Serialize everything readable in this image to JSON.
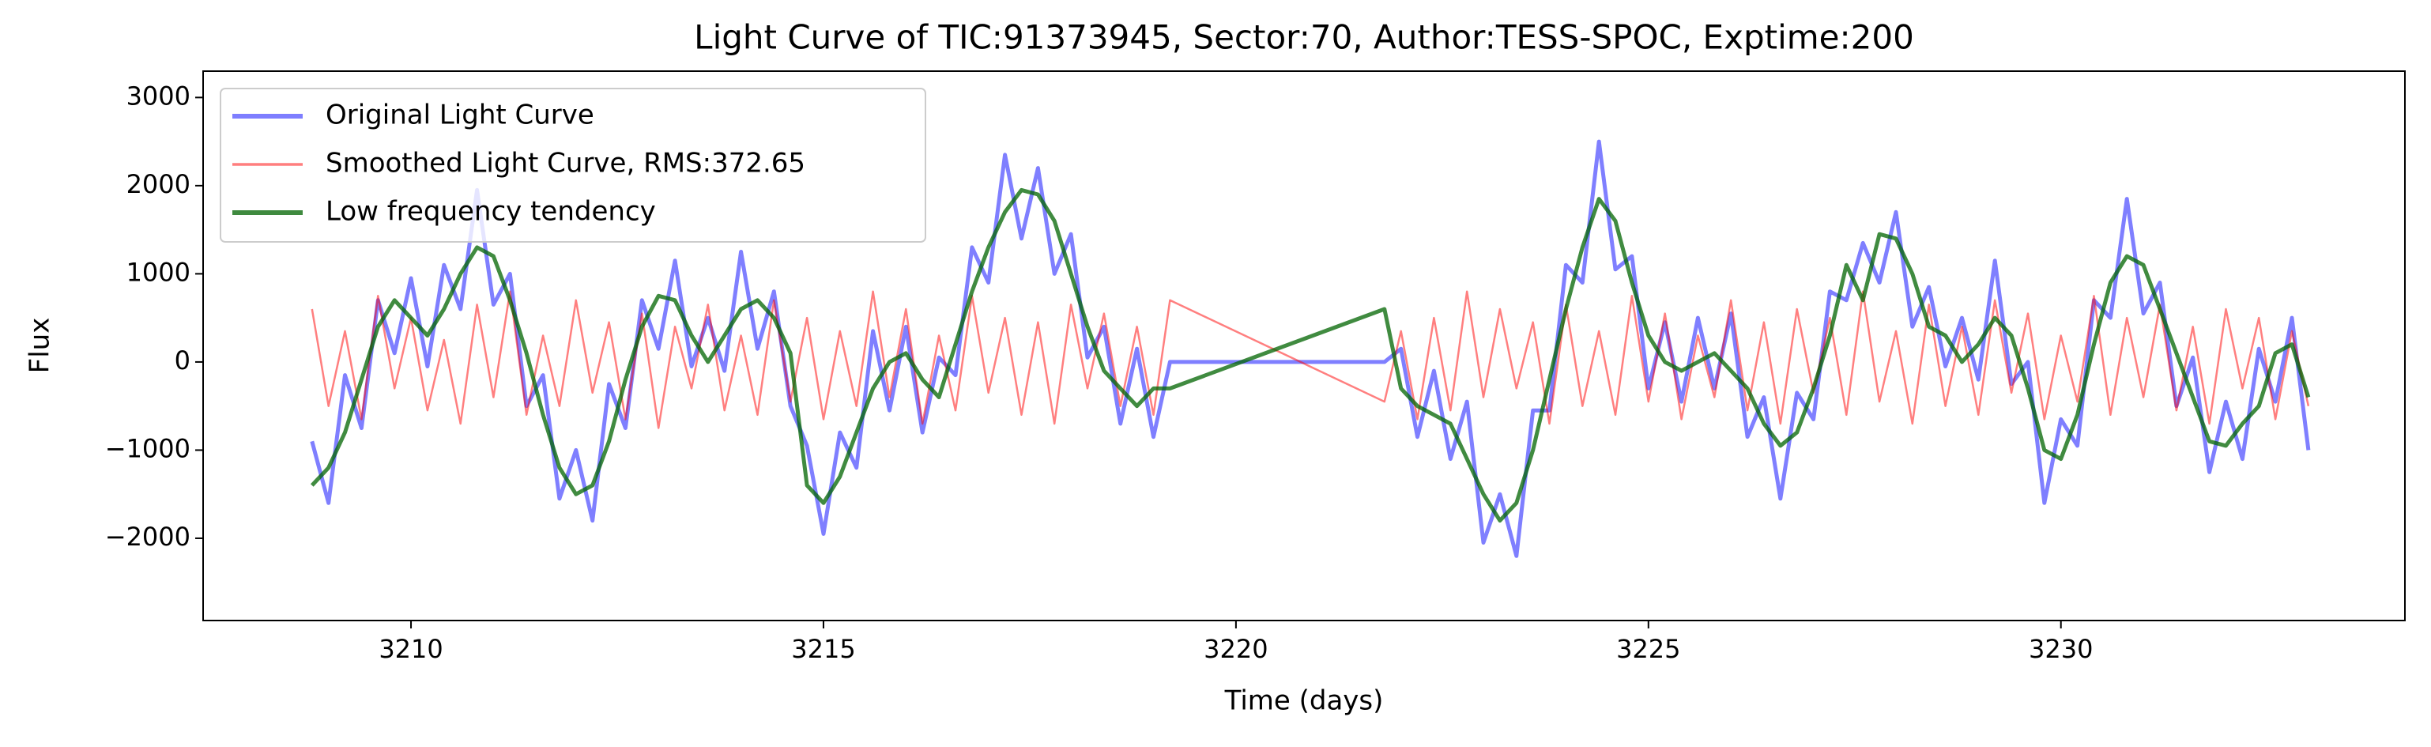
{
  "chart_data": {
    "type": "line",
    "title": "Light Curve of TIC:91373945, Sector:70, Author:TESS-SPOC, Exptime:200",
    "x_label": "Time (days)",
    "y_label": "Flux",
    "xlim": [
      3207.48,
      3234.17
    ],
    "ylim": [
      -2933,
      3299
    ],
    "xticks": [
      3210,
      3215,
      3220,
      3225,
      3230
    ],
    "yticks": [
      {
        "value": -2000,
        "label": "−2000"
      },
      {
        "value": -1000,
        "label": "−1000"
      },
      0,
      1000,
      2000,
      3000
    ],
    "legend": "upper left",
    "x": [
      3208.8,
      3209,
      3209.2,
      3209.4,
      3209.6,
      3209.8,
      3210,
      3210.2,
      3210.4,
      3210.6,
      3210.8,
      3211,
      3211.2,
      3211.4,
      3211.6,
      3211.8,
      3212,
      3212.2,
      3212.4,
      3212.6,
      3212.8,
      3213,
      3213.2,
      3213.4,
      3213.6,
      3213.8,
      3214,
      3214.2,
      3214.4,
      3214.6,
      3214.8,
      3215,
      3215.2,
      3215.4,
      3215.6,
      3215.8,
      3216,
      3216.2,
      3216.4,
      3216.6,
      3216.8,
      3217,
      3217.2,
      3217.4,
      3217.6,
      3217.8,
      3218,
      3218.2,
      3218.4,
      3218.6,
      3218.8,
      3219,
      3219.2,
      3221.8,
      3222,
      3222.2,
      3222.4,
      3222.6,
      3222.8,
      3223,
      3223.2,
      3223.4,
      3223.6,
      3223.8,
      3224,
      3224.2,
      3224.4,
      3224.6,
      3224.8,
      3225,
      3225.2,
      3225.4,
      3225.6,
      3225.8,
      3226,
      3226.2,
      3226.4,
      3226.6,
      3226.8,
      3227,
      3227.2,
      3227.4,
      3227.6,
      3227.8,
      3228,
      3228.2,
      3228.4,
      3228.6,
      3228.8,
      3229,
      3229.2,
      3229.4,
      3229.6,
      3229.8,
      3230,
      3230.2,
      3230.4,
      3230.6,
      3230.8,
      3231,
      3231.2,
      3231.4,
      3231.6,
      3231.8,
      3232,
      3232.2,
      3232.4,
      3232.6,
      3232.8,
      3233
    ],
    "series": [
      {
        "name": "Original Light Curve",
        "color": "#0000ff",
        "values": [
          -900,
          -1600,
          -150,
          -750,
          700,
          100,
          950,
          -50,
          1100,
          600,
          1950,
          650,
          1000,
          -500,
          -150,
          -1550,
          -1000,
          -1800,
          -250,
          -750,
          700,
          150,
          1150,
          -50,
          500,
          -100,
          1250,
          150,
          800,
          -500,
          -950,
          -1950,
          -800,
          -1200,
          350,
          -550,
          400,
          -800,
          50,
          -150,
          1300,
          900,
          2350,
          1400,
          2200,
          1000,
          1450,
          50,
          400,
          -700,
          150,
          -850,
          0,
          0,
          150,
          -850,
          -100,
          -1100,
          -450,
          -2050,
          -1500,
          -2200,
          -550,
          -550,
          1100,
          900,
          2500,
          1050,
          1200,
          -300,
          450,
          -450,
          500,
          -300,
          550,
          -850,
          -400,
          -1550,
          -350,
          -650,
          800,
          700,
          1350,
          900,
          1700,
          400,
          850,
          -50,
          500,
          -200,
          1150,
          -250,
          0,
          -1600,
          -650,
          -950,
          700,
          500,
          1850,
          550,
          900,
          -500,
          50,
          -1250,
          -450,
          -1100,
          150,
          -450,
          500,
          -1000
        ]
      },
      {
        "name": "Smoothed Light Curve, RMS:372.65",
        "color": "#ff0000",
        "values": [
          600,
          -500,
          350,
          -650,
          750,
          -300,
          500,
          -550,
          250,
          -700,
          650,
          -400,
          800,
          -600,
          300,
          -500,
          700,
          -350,
          450,
          -650,
          550,
          -750,
          400,
          -300,
          650,
          -550,
          300,
          -600,
          700,
          -450,
          500,
          -650,
          350,
          -500,
          800,
          -400,
          600,
          -700,
          300,
          -550,
          750,
          -350,
          500,
          -600,
          450,
          -700,
          650,
          -300,
          550,
          -500,
          400,
          -600,
          700,
          -450,
          350,
          -650,
          500,
          -550,
          800,
          -400,
          600,
          -300,
          450,
          -700,
          650,
          -500,
          350,
          -600,
          750,
          -450,
          550,
          -650,
          300,
          -400,
          700,
          -550,
          450,
          -700,
          600,
          -350,
          500,
          -600,
          800,
          -450,
          350,
          -700,
          650,
          -500,
          400,
          -600,
          700,
          -350,
          550,
          -650,
          300,
          -450,
          750,
          -600,
          500,
          -400,
          650,
          -550,
          400,
          -700,
          600,
          -300,
          500,
          -650,
          350,
          -500
        ]
      },
      {
        "name": "Low frequency tendency",
        "color": "#006400",
        "values": [
          -1400,
          -1200,
          -800,
          -200,
          400,
          700,
          500,
          300,
          600,
          1000,
          1300,
          1200,
          700,
          100,
          -600,
          -1200,
          -1500,
          -1400,
          -900,
          -200,
          400,
          750,
          700,
          300,
          0,
          300,
          600,
          700,
          500,
          100,
          -1400,
          -1600,
          -1300,
          -800,
          -300,
          0,
          100,
          -200,
          -400,
          200,
          800,
          1300,
          1700,
          1950,
          1900,
          1600,
          1000,
          400,
          -100,
          -300,
          -500,
          -300,
          -300,
          600,
          -300,
          -500,
          -600,
          -700,
          -1100,
          -1500,
          -1800,
          -1600,
          -1000,
          -200,
          600,
          1300,
          1850,
          1600,
          900,
          300,
          0,
          -100,
          0,
          100,
          -100,
          -300,
          -700,
          -950,
          -800,
          -300,
          300,
          1100,
          700,
          1450,
          1400,
          1000,
          400,
          300,
          0,
          200,
          500,
          300,
          -300,
          -1000,
          -1100,
          -600,
          200,
          900,
          1200,
          1100,
          600,
          100,
          -400,
          -900,
          -950,
          -700,
          -500,
          100,
          200,
          -400
        ]
      }
    ]
  }
}
